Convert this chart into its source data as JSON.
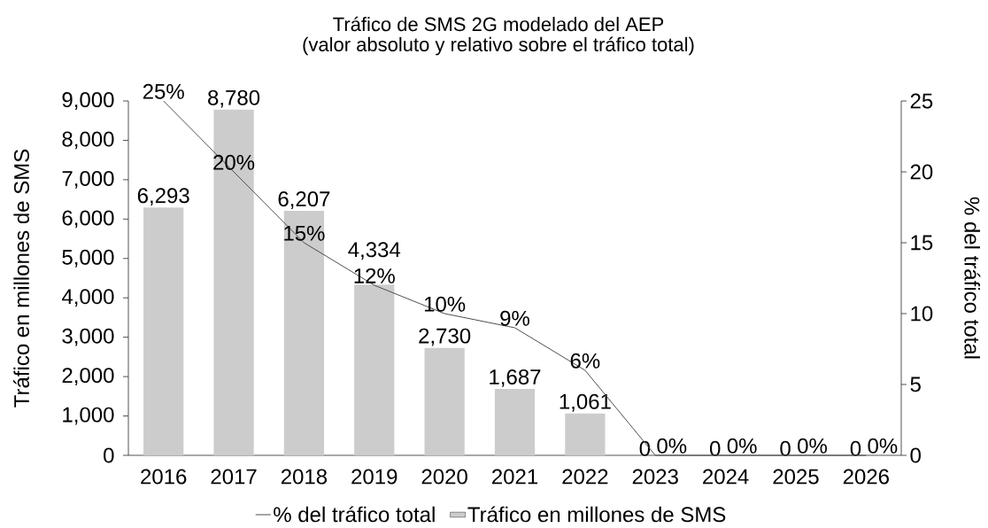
{
  "chart_data": {
    "type": "bar",
    "title": "Tráfico de SMS 2G modelado del AEP",
    "subtitle": "(valor absoluto y relativo sobre el tráfico total)",
    "ylabel": "Tráfico en millones de SMS",
    "y2label": "% del tráfico total",
    "categories": [
      "2016",
      "2017",
      "2018",
      "2019",
      "2020",
      "2021",
      "2022",
      "2023",
      "2024",
      "2025",
      "2026"
    ],
    "series": [
      {
        "name": "% del tráfico total",
        "type": "line",
        "axis": "y2",
        "color": "#4d4d4d",
        "values": [
          25,
          20,
          15,
          12,
          10,
          9,
          6,
          0,
          0,
          0,
          0
        ],
        "value_labels": [
          "25%",
          "20%",
          "15%",
          "12%",
          "10%",
          "9%",
          "6%",
          "0%",
          "0%",
          "0%",
          "0%"
        ]
      },
      {
        "name": "Tráfico en millones de SMS",
        "color": "#cccccc",
        "values": [
          6293,
          8780,
          6207,
          4334,
          2730,
          1687,
          1061,
          0,
          0,
          0,
          0
        ],
        "value_labels": [
          "6,293",
          "8,780",
          "6,207",
          "4,334",
          "2,730",
          "1,687",
          "1,061",
          "0",
          "0",
          "0",
          "0"
        ]
      }
    ],
    "ylim": [
      0,
      9000
    ],
    "yticks": [
      0,
      {
        "value": 1000,
        "label": "1,000"
      },
      {
        "value": 2000,
        "label": "2,000"
      },
      {
        "value": 3000,
        "label": "3,000"
      },
      {
        "value": 4000,
        "label": "4,000"
      },
      {
        "value": 5000,
        "label": "5,000"
      },
      {
        "value": 6000,
        "label": "6,000"
      },
      {
        "value": 7000,
        "label": "7,000"
      },
      {
        "value": 8000,
        "label": "8,000"
      },
      {
        "value": 9000,
        "label": "9,000"
      }
    ],
    "y2lim": [
      0,
      25
    ],
    "y2ticks": [
      0,
      5,
      10,
      15,
      20,
      25
    ],
    "legend": "bottom"
  }
}
